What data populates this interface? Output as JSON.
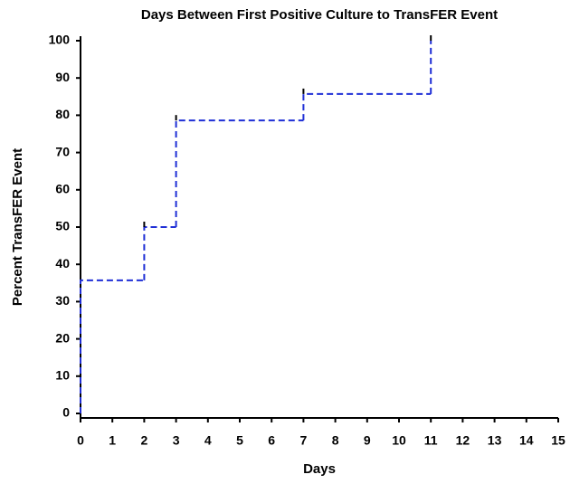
{
  "chart_data": {
    "type": "step",
    "title": "Days Between First Positive Culture to TransFER Event",
    "x_label": "Days",
    "y_label": "Percent TransFER Event",
    "x": [
      0,
      0,
      2,
      3,
      7,
      11
    ],
    "values": [
      0,
      35.7,
      50,
      78.6,
      85.7,
      100
    ],
    "color": "#1f2fd6",
    "xlim": [
      0,
      15
    ],
    "xticks": [
      0,
      1,
      2,
      3,
      4,
      5,
      6,
      7,
      8,
      9,
      10,
      11,
      12,
      13,
      14,
      15
    ],
    "ylim": [
      0,
      100
    ],
    "yticks": [
      0,
      10,
      20,
      30,
      40,
      50,
      60,
      70,
      80,
      90,
      100
    ]
  }
}
